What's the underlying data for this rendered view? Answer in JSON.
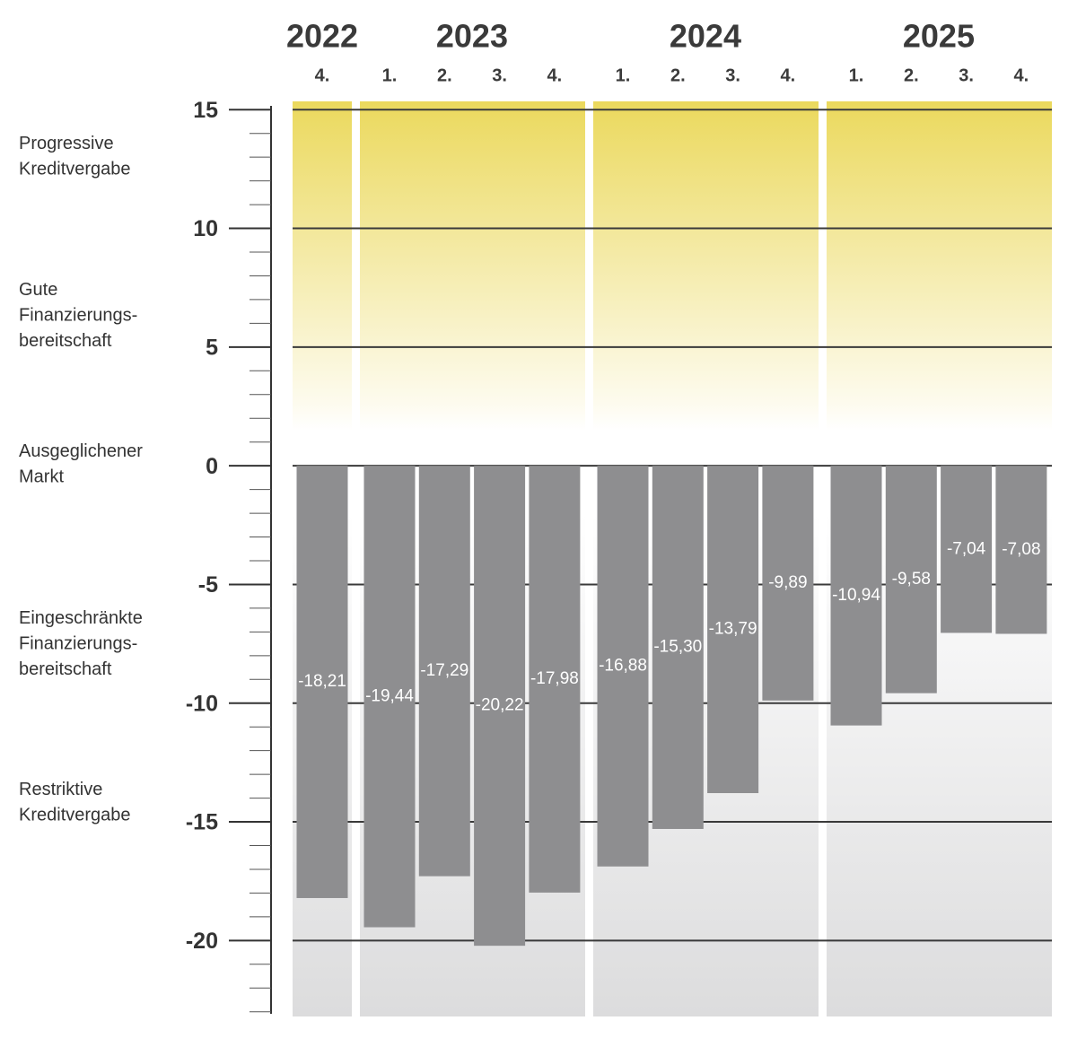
{
  "chart_data": {
    "type": "bar",
    "groups": [
      {
        "name": "2022",
        "categories": [
          "4."
        ],
        "values": [
          -18.21
        ],
        "value_labels": [
          "-18,21"
        ]
      },
      {
        "name": "2023",
        "categories": [
          "1.",
          "2.",
          "3.",
          "4."
        ],
        "values": [
          -19.44,
          -17.29,
          -20.22,
          -17.98
        ],
        "value_labels": [
          "-19,44",
          "-17,29",
          "-20,22",
          "-17,98"
        ]
      },
      {
        "name": "2024",
        "categories": [
          "1.",
          "2.",
          "3.",
          "4."
        ],
        "values": [
          -16.88,
          -15.3,
          -13.79,
          -9.89
        ],
        "value_labels": [
          "-16,88",
          "-15,30",
          "-13,79",
          "-9,89"
        ]
      },
      {
        "name": "2025",
        "categories": [
          "1.",
          "2.",
          "3.",
          "4."
        ],
        "values": [
          -10.94,
          -9.58,
          -7.04,
          -7.08
        ],
        "value_labels": [
          "-10,94",
          "-9,58",
          "-7,04",
          "-7,08"
        ]
      }
    ],
    "zones": [
      [
        "Progressive",
        "Kreditvergabe"
      ],
      [
        "Gute",
        "Finanzierungs-",
        "bereitschaft"
      ],
      [
        "Ausgeglichener",
        "Markt"
      ],
      [
        "Eingeschränkte",
        "Finanzierungs-",
        "bereitschaft"
      ],
      [
        "Restriktive",
        "Kreditvergabe"
      ]
    ],
    "color": "#8e8e90",
    "ylim": [
      -23.2,
      15.35
    ],
    "yticks": [
      15,
      10,
      5,
      0,
      -5,
      -10,
      -15,
      -20
    ],
    "grid": true
  }
}
